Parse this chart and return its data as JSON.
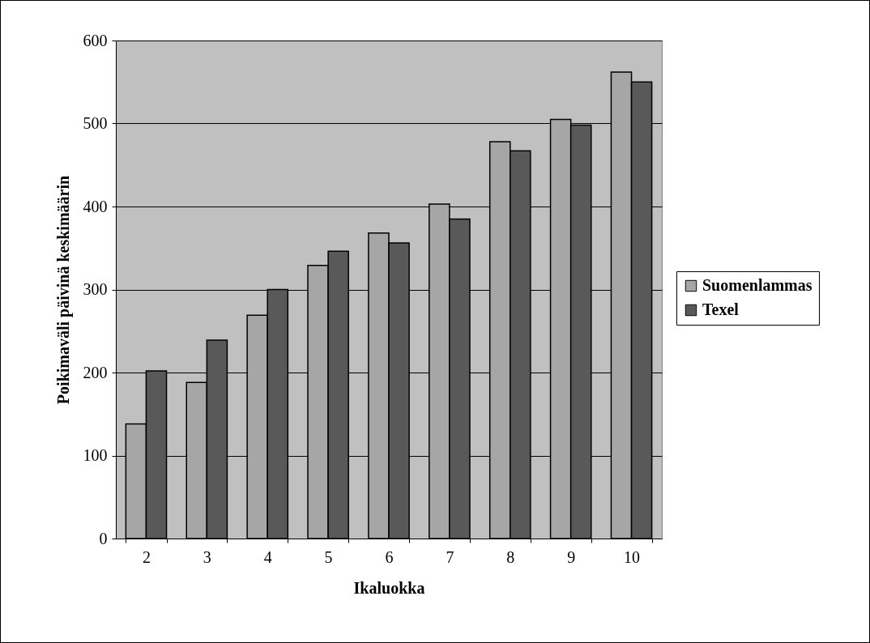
{
  "chart_data": {
    "type": "bar",
    "xlabel": "Ikaluokka",
    "ylabel": "Poikimaväli päivinä keskimäärin",
    "categories": [
      "2",
      "3",
      "4",
      "5",
      "6",
      "7",
      "8",
      "9",
      "10"
    ],
    "series": [
      {
        "name": "Suomenlammas",
        "color": "#a6a6a6",
        "values": [
          138,
          188,
          269,
          329,
          368,
          403,
          478,
          505,
          562
        ]
      },
      {
        "name": "Texel",
        "color": "#595959",
        "values": [
          202,
          239,
          300,
          346,
          356,
          385,
          467,
          498,
          550
        ]
      }
    ],
    "ylim": [
      0,
      600
    ],
    "yticks": [
      0,
      100,
      200,
      300,
      400,
      500,
      600
    ],
    "grid": "y",
    "legend": "right"
  }
}
